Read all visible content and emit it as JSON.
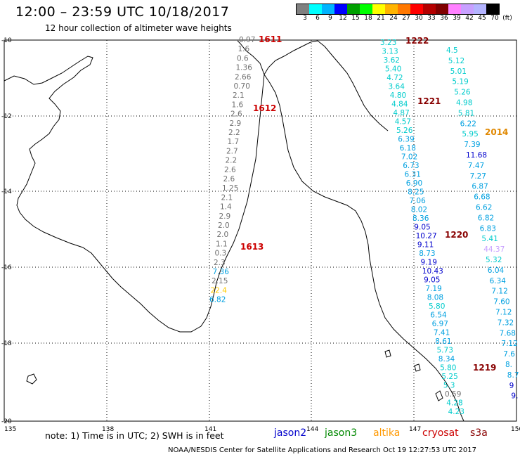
{
  "header": {
    "title": "12:00 – 23:59 UTC 10/18/2017",
    "subtitle": "12 hour collection of altimeter wave heights"
  },
  "colorbar": {
    "colors": [
      "#808080",
      "#00ffff",
      "#00b4ff",
      "#0000ff",
      "#00a000",
      "#00ff00",
      "#ffff00",
      "#ffb400",
      "#ff7800",
      "#ff0000",
      "#b40000",
      "#800000",
      "#ff80ff",
      "#c8a0ff",
      "#b4b4ff",
      "#000000"
    ],
    "ticks": [
      "3",
      "6",
      "9",
      "12",
      "15",
      "18",
      "21",
      "24",
      "27",
      "30",
      "33",
      "36",
      "39",
      "42",
      "45",
      "70"
    ],
    "unit": "(ft)"
  },
  "axes": {
    "lon_labels": [
      "135",
      "138",
      "141",
      "144",
      "147",
      "150"
    ],
    "lat_labels": [
      "-10",
      "-12",
      "-14",
      "-16",
      "-18",
      "-20"
    ]
  },
  "tracks": {
    "t1": [
      "0.97",
      "1.6",
      "0.6",
      "1.36",
      "2.66",
      "0.70",
      "2.1",
      "1.6",
      "2.6",
      "2.9",
      "2.2",
      "1.7",
      "2.7",
      "2.2",
      "2.6",
      "2.6",
      "1.25",
      "2.1",
      "1.4",
      "2.9",
      "2.0",
      "2.0",
      "1.1",
      "0.3",
      "2.3",
      "7.36",
      "2.15",
      "22.4",
      "6.82"
    ],
    "t2": [
      "3.23",
      "3.13",
      "3.62",
      "5.40",
      "4.72",
      "3.64",
      "4.80",
      "4.84",
      "4.87",
      "4.57",
      "5.26",
      "6.39",
      "6.18",
      "7.02",
      "6.73",
      "6.31",
      "6.90",
      "8.25",
      "7.06",
      "8.02",
      "8.36",
      "9.05",
      "10.27",
      "9.11",
      "8.73",
      "9.19",
      "10.43",
      "9.05",
      "7.19",
      "8.08",
      "5.80",
      "6.54",
      "6.97",
      "7.41",
      "8.61",
      "5.73",
      "8.34",
      "5.80",
      "5.25",
      "5.3",
      "0.59",
      "4.28",
      "4.23"
    ],
    "t3": [
      "4.5",
      "5.12",
      "5.01",
      "5.19",
      "5.26",
      "4.98",
      "5.81",
      "6.22",
      "5.95",
      "7.39",
      "11.68",
      "7.47",
      "7.27",
      "6.87",
      "6.68",
      "6.62",
      "6.82",
      "6.83",
      "5.41",
      "44.37",
      "5.32",
      "6.04",
      "6.34",
      "7.12",
      "7.60",
      "7.12",
      "7.32",
      "7.68",
      "7.12",
      "7.6",
      "8.",
      "8.7",
      "9",
      "9."
    ],
    "cycles": {
      "c1611": "1611",
      "c1612": "1612",
      "c1613": "1613",
      "c1222": "1222",
      "c1221": "1221",
      "c1220": "1220",
      "c1219": "1219",
      "c2014": "2014"
    }
  },
  "footer": {
    "note": "note: 1) Time is in UTC; 2) SWH is in feet",
    "legend": [
      {
        "label": "jason2",
        "color": "#0000cc"
      },
      {
        "label": "jason3",
        "color": "#008800"
      },
      {
        "label": "altika",
        "color": "#ff9900"
      },
      {
        "label": "cryosat",
        "color": "#cc0000"
      },
      {
        "label": "s3a",
        "color": "#880000"
      }
    ],
    "credit": "NOAA/NESDIS Center for Satellite Applications and Research    Oct 19 12:27:53 UTC 2017"
  }
}
